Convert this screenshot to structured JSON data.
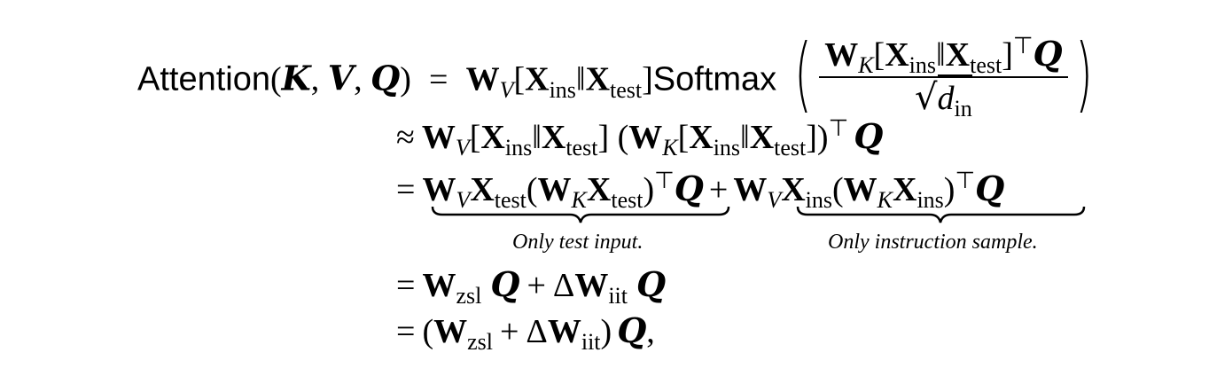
{
  "equation": {
    "line1": {
      "lhs_func": "Attention",
      "lhs_args": [
        "K",
        "V",
        "Q"
      ],
      "rel": "=",
      "softmax": "Softmax",
      "W": "W",
      "V_sub": "V",
      "K_sub": "K",
      "X": "X",
      "ins": "ins",
      "test": "test",
      "T": "⊤",
      "Q": "Q",
      "d": "d",
      "in": "in"
    },
    "line2": {
      "rel": "≈"
    },
    "line3": {
      "rel": "=",
      "label_left": "Only test input.",
      "label_right": "Only instruction sample."
    },
    "line4": {
      "rel": "=",
      "zsl": "zsl",
      "iit": "iit",
      "delta": "Δ"
    },
    "line5": {
      "rel": "=",
      "trailing": ","
    }
  }
}
